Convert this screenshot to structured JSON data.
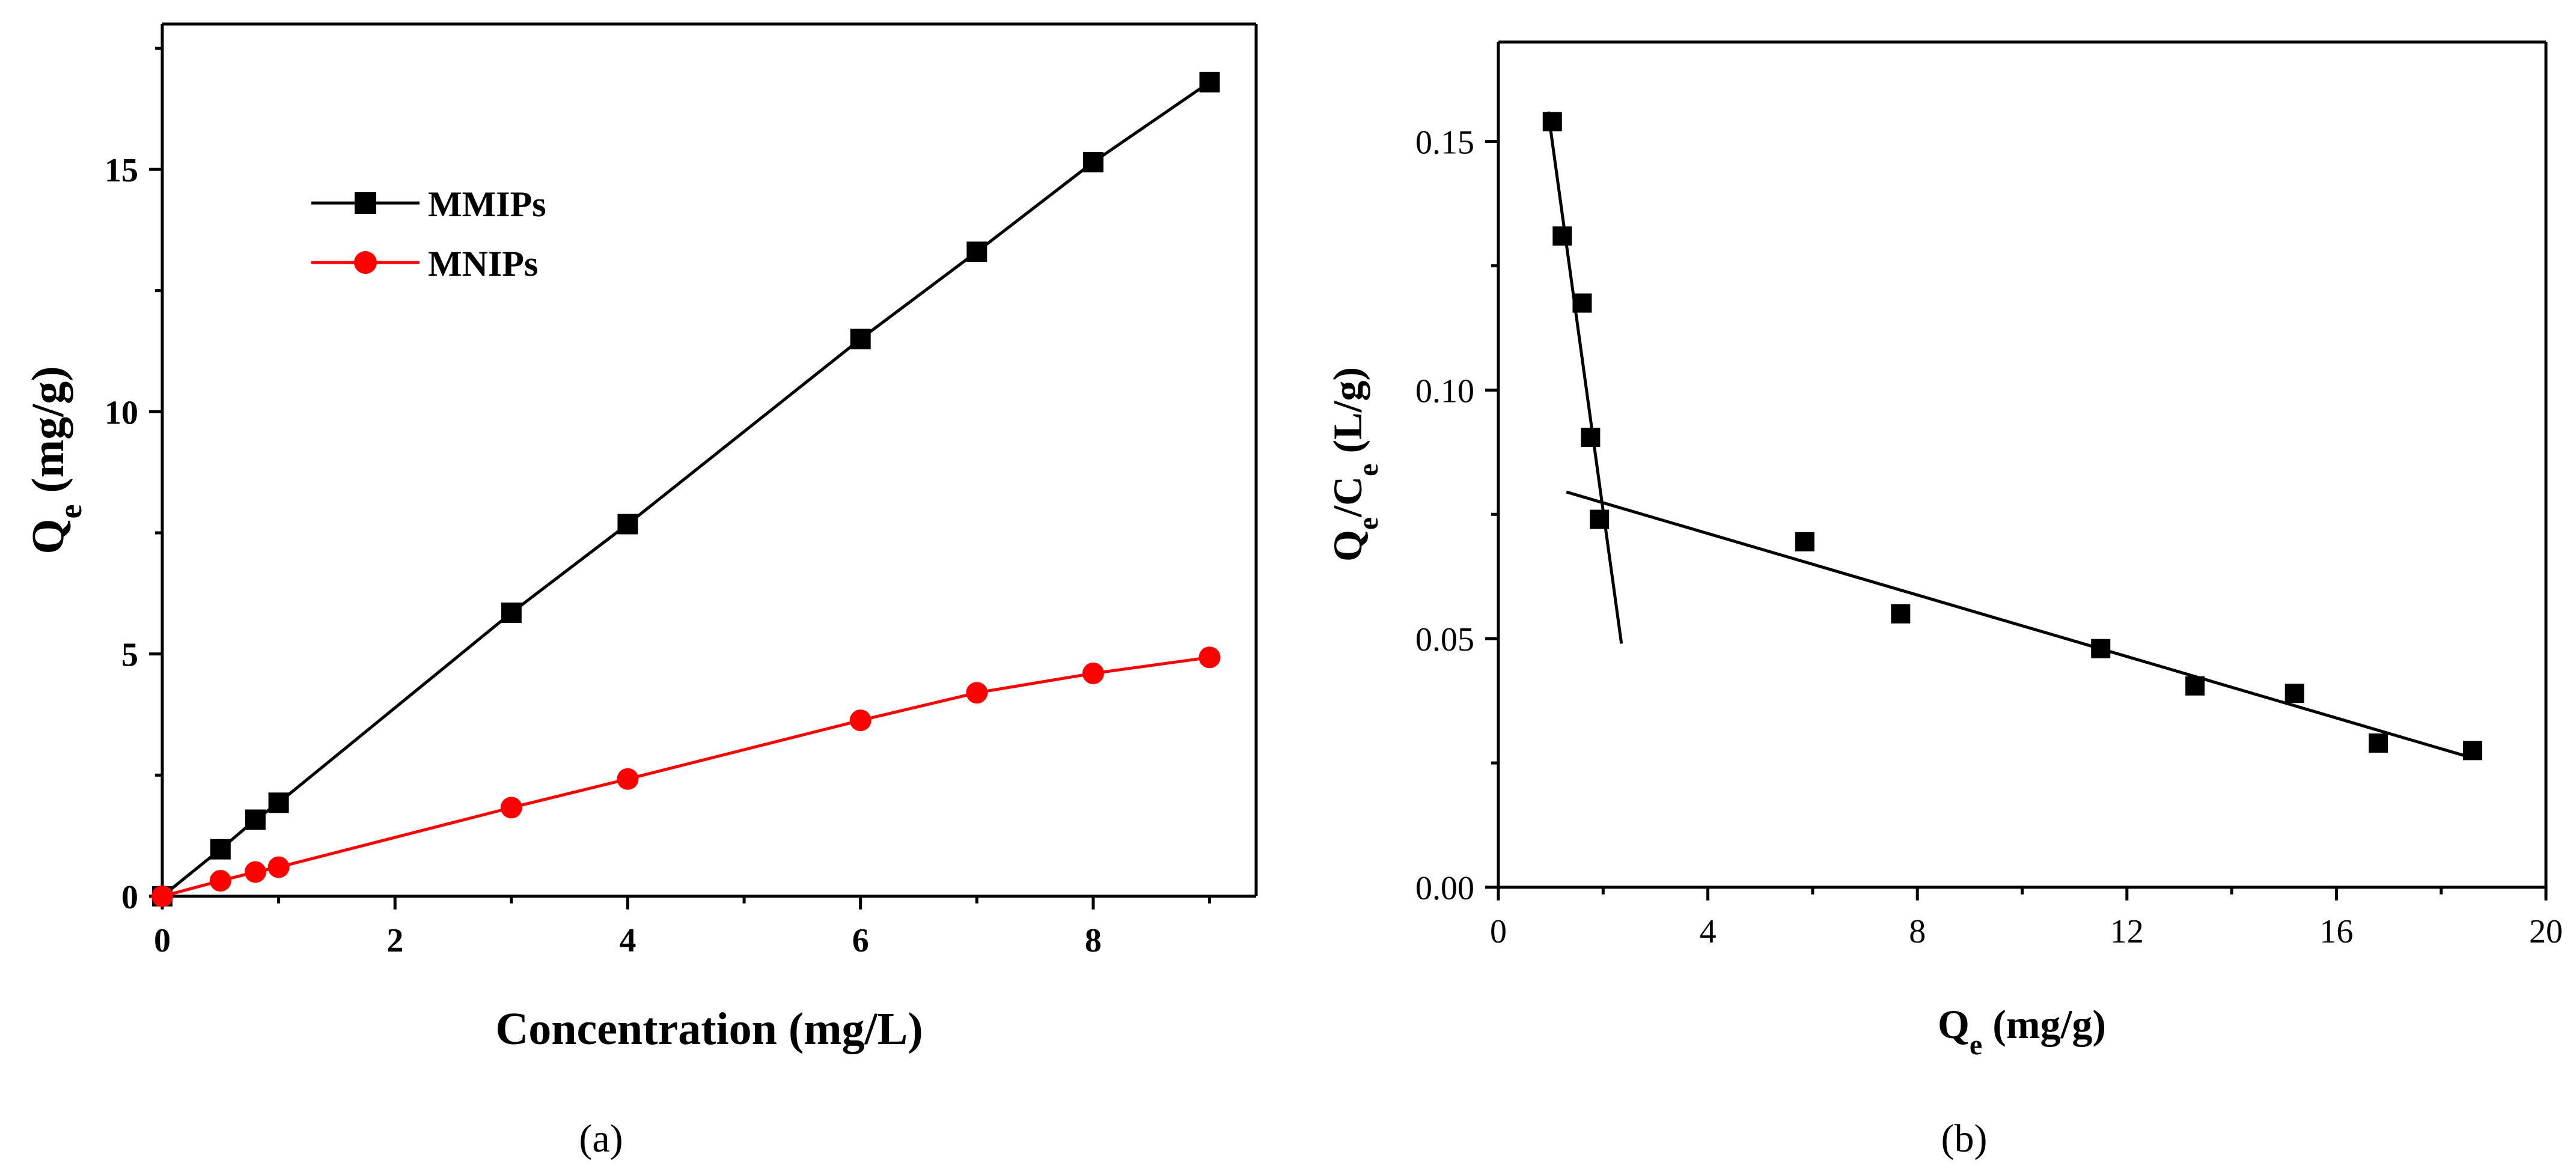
{
  "chart_data": [
    {
      "panel": "(a)",
      "type": "line",
      "xlabel": "Concentration (mg/L)",
      "ylabel": {
        "main": "Q",
        "sub": "e",
        "rest": " (mg/g)"
      },
      "xlim": [
        0,
        9.4
      ],
      "ylim": [
        0,
        18
      ],
      "xticks": [
        0,
        2,
        4,
        6,
        8
      ],
      "yticks": [
        0,
        5,
        10,
        15
      ],
      "legend_position": "top-left",
      "series": [
        {
          "name": "MMIPs",
          "color": "#000000",
          "marker": "square",
          "x": [
            0,
            0.5,
            0.8,
            1,
            3,
            4,
            6,
            7,
            8,
            9
          ],
          "y": [
            0,
            0.97,
            1.58,
            1.93,
            5.85,
            7.68,
            11.5,
            13.3,
            15.15,
            16.8
          ]
        },
        {
          "name": "MNIPs",
          "color": "#ff0000",
          "marker": "circle",
          "x": [
            0,
            0.5,
            0.8,
            1,
            3,
            4,
            6,
            7,
            8,
            9
          ],
          "y": [
            0,
            0.32,
            0.5,
            0.6,
            1.83,
            2.42,
            3.63,
            4.2,
            4.6,
            4.93
          ]
        }
      ]
    },
    {
      "panel": "(b)",
      "type": "scatter",
      "xlabel": {
        "main": "Q",
        "sub": "e",
        "rest": " (mg/g)"
      },
      "ylabel": {
        "main": "Q",
        "sub": "e",
        "mid": "/C",
        "sub2": "e",
        "rest": " (L/g)"
      },
      "xlim": [
        0,
        20
      ],
      "ylim": [
        0,
        0.17
      ],
      "xticks": [
        0,
        4,
        8,
        12,
        16,
        20
      ],
      "yticks": [
        "0.00",
        "0.05",
        "0.10",
        "0.15"
      ],
      "points": {
        "x": [
          1.03,
          1.22,
          1.6,
          1.76,
          1.93,
          5.85,
          7.68,
          11.5,
          13.3,
          15.2,
          16.8,
          18.6
        ],
        "y": [
          0.154,
          0.131,
          0.1175,
          0.0905,
          0.074,
          0.0695,
          0.055,
          0.048,
          0.0405,
          0.039,
          0.029,
          0.0275
        ]
      },
      "fit_lines": [
        {
          "x": [
            0.95,
            2.35
          ],
          "y": [
            0.156,
            0.049
          ]
        },
        {
          "x": [
            1.3,
            18.6
          ],
          "y": [
            0.0795,
            0.026
          ]
        }
      ]
    }
  ]
}
